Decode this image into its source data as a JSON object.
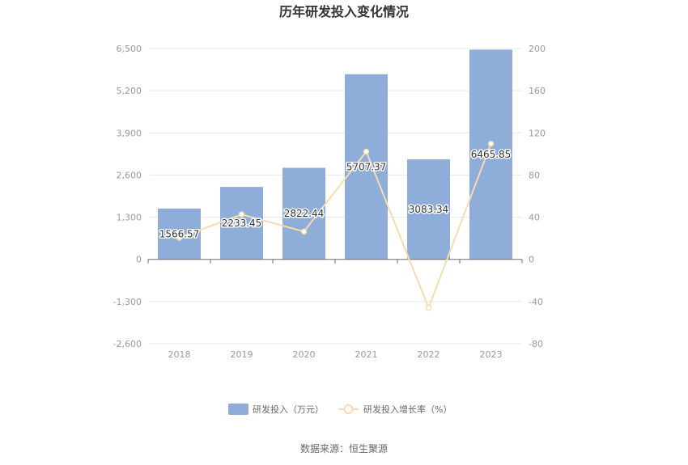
{
  "chart_data": {
    "type": "bar",
    "title": "历年研发投入变化情况",
    "categories": [
      "2018",
      "2019",
      "2020",
      "2021",
      "2022",
      "2023"
    ],
    "series": [
      {
        "name": "研发投入（万元）",
        "type": "bar",
        "axis": "left",
        "values": [
          1566.57,
          2233.45,
          2822.44,
          5707.37,
          3083.34,
          6465.85
        ],
        "labels": [
          "1566.57",
          "2233.45",
          "2822.44",
          "5707.37",
          "3083.34",
          "6465.85"
        ],
        "color": "#8eadd9"
      },
      {
        "name": "研发投入增长率（%）",
        "type": "line",
        "axis": "right",
        "values": [
          20.5,
          42.6,
          26.4,
          102.2,
          -46.0,
          109.7
        ],
        "color": "#f7dcae"
      }
    ],
    "y_left": {
      "range": [
        -2600,
        6500
      ],
      "ticks": [
        "-2,600",
        "-1,300",
        "0",
        "1,300",
        "2,600",
        "3,900",
        "5,200",
        "6,500"
      ],
      "tick_values": [
        -2600,
        -1300,
        0,
        1300,
        2600,
        3900,
        5200,
        6500
      ]
    },
    "y_right": {
      "range": [
        -80,
        200
      ],
      "ticks": [
        "-80",
        "-40",
        "0",
        "40",
        "80",
        "120",
        "160",
        "200"
      ],
      "tick_values": [
        -80,
        -40,
        0,
        40,
        80,
        120,
        160,
        200
      ]
    },
    "grid": true,
    "legend_position": "bottom"
  },
  "source": "数据来源：恒生聚源"
}
